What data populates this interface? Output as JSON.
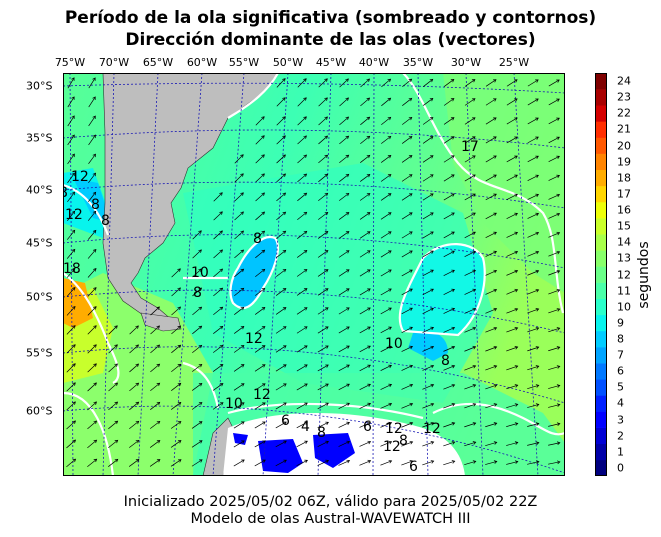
{
  "title_line1": "Período de la ola significativa (sombreado y contornos)",
  "title_line2": "Dirección dominante de las olas (vectores)",
  "footer_line1": "Inicializado 2025/05/02 06Z, válido para 2025/05/02 22Z",
  "footer_line2": "Modelo de olas Austral-WAVEWATCH III",
  "lon_labels": [
    "75°W",
    "70°W",
    "65°W",
    "60°W",
    "55°W",
    "50°W",
    "45°W",
    "40°W",
    "35°W",
    "30°W",
    "25°W"
  ],
  "lat_labels": [
    "30°S",
    "35°S",
    "40°S",
    "45°S",
    "50°S",
    "55°S",
    "60°S"
  ],
  "colorbar": {
    "unit": "segundos",
    "ticks": [
      "0",
      "1",
      "2",
      "3",
      "4",
      "5",
      "6",
      "7",
      "8",
      "9",
      "10",
      "11",
      "12",
      "13",
      "14",
      "15",
      "16",
      "17",
      "18",
      "19",
      "20",
      "21",
      "22",
      "23",
      "24"
    ],
    "colors": [
      "#00007f",
      "#0000a8",
      "#0000d4",
      "#0000ff",
      "#0020ff",
      "#0050ff",
      "#0078ff",
      "#00a4ff",
      "#00ccff",
      "#08f4ed",
      "#2affca",
      "#4affa8",
      "#6aff88",
      "#88ff6a",
      "#a8ff4a",
      "#caff2a",
      "#eeff08",
      "#ffd600",
      "#ffac00",
      "#ff8400",
      "#ff5800",
      "#ff2e00",
      "#d40000",
      "#a80000",
      "#7f0000"
    ]
  },
  "contour_labels": [
    "12",
    "8",
    "8",
    "12",
    "8",
    "18",
    "8",
    "10",
    "8",
    "12",
    "10",
    "8",
    "17",
    "12",
    "10",
    "12",
    "6",
    "4",
    "8",
    "6",
    "12",
    "8",
    "12",
    "6"
  ]
}
